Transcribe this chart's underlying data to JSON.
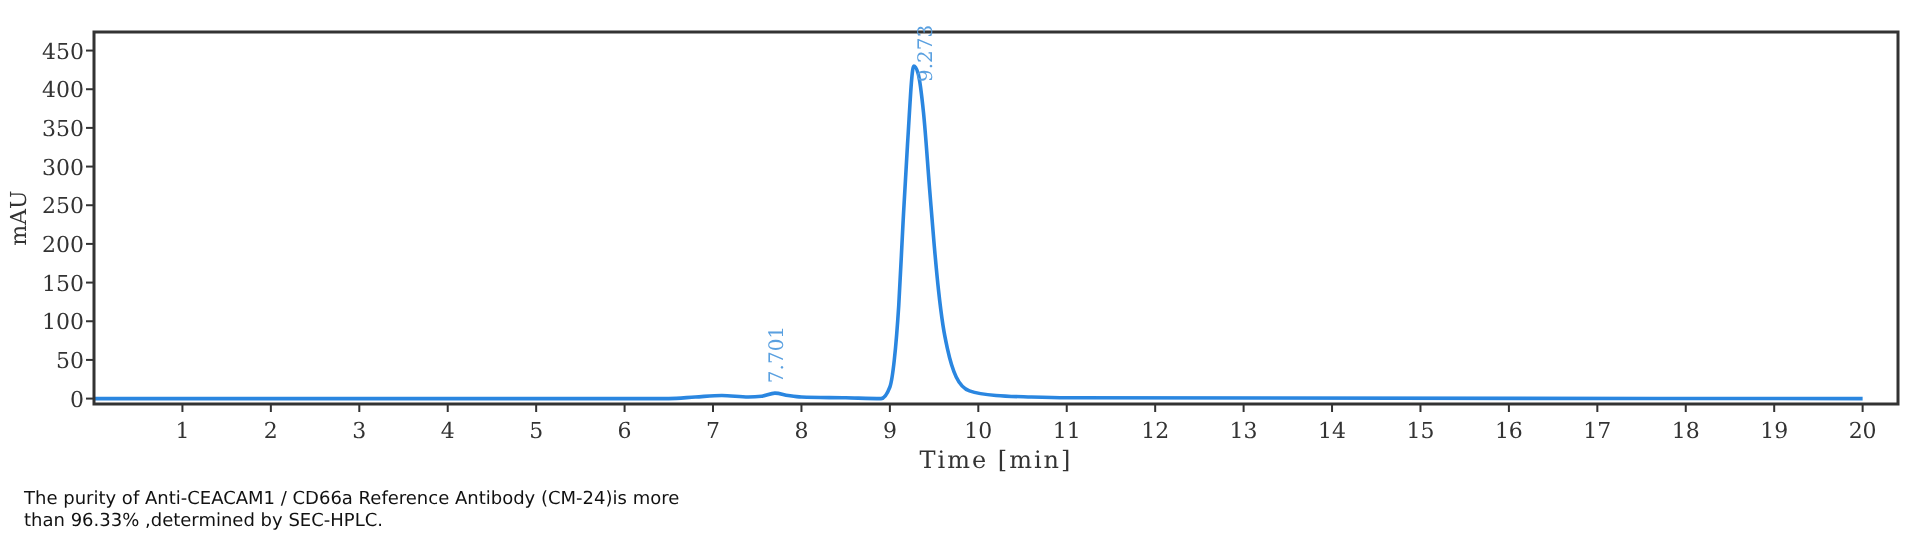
{
  "chart_data": {
    "type": "line",
    "xlabel": "Time [min]",
    "ylabel": "mAU",
    "xlim": [
      0,
      20.4
    ],
    "ylim": [
      -7,
      474
    ],
    "xticks": [
      1,
      2,
      3,
      4,
      5,
      6,
      7,
      8,
      9,
      10,
      11,
      12,
      13,
      14,
      15,
      16,
      17,
      18,
      19,
      20
    ],
    "yticks": [
      0,
      50,
      100,
      150,
      200,
      250,
      300,
      350,
      400,
      450
    ],
    "grid": false,
    "line_style": "solid",
    "series": [
      {
        "color": "#2a86e0",
        "x": [
          0,
          6.5,
          6.8,
          7.1,
          7.4,
          7.55,
          7.7,
          7.85,
          8.0,
          8.5,
          8.9,
          9.0,
          9.05,
          9.1,
          9.15,
          9.2,
          9.27,
          9.32,
          9.38,
          9.45,
          9.5,
          9.55,
          9.6,
          9.65,
          9.75,
          9.9,
          10.2,
          10.6,
          11,
          20
        ],
        "values": [
          0,
          0,
          2,
          4,
          2,
          3,
          7,
          4,
          2,
          1,
          0,
          15,
          50,
          120,
          230,
          330,
          430,
          420,
          370,
          270,
          200,
          140,
          95,
          65,
          28,
          10,
          4,
          2,
          1,
          0
        ]
      }
    ],
    "annotations": [
      {
        "text": "9.273",
        "x": 9.273,
        "y": 430
      },
      {
        "text": "7.701",
        "x": 7.701,
        "y": 7
      },
      "The purity of Anti-CEACAM1 / CD66a Reference Antibody (CM-24)is more than 96.33% ,determined by SEC-HPLC."
    ]
  }
}
